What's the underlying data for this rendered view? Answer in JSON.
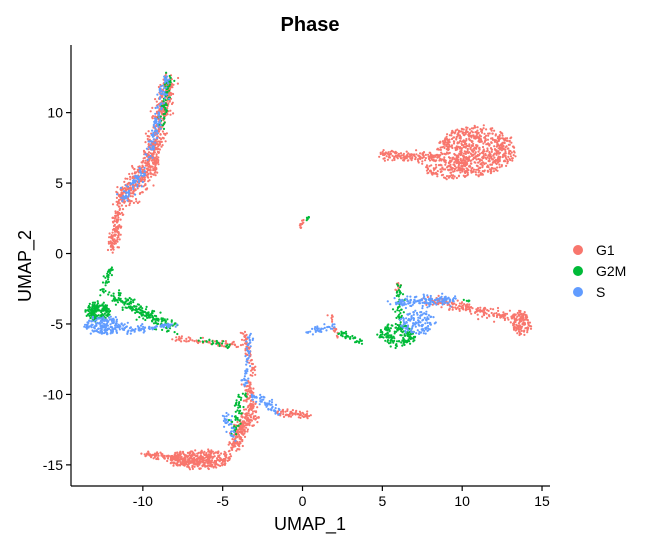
{
  "chart_data": {
    "type": "scatter",
    "title": "Phase",
    "xlabel": "UMAP_1",
    "ylabel": "UMAP_2",
    "xlim": [
      -14.5,
      15.5
    ],
    "ylim": [
      -16.5,
      14.8
    ],
    "xticks": [
      -10,
      -5,
      0,
      5,
      10,
      15
    ],
    "yticks": [
      -15,
      -10,
      -5,
      0,
      5,
      10
    ],
    "xtick_labels": [
      "-10",
      "-5",
      "0",
      "5",
      "10",
      "15"
    ],
    "ytick_labels": [
      "-15",
      "-10",
      "-5",
      "0",
      "5",
      "10"
    ],
    "grid": false,
    "legend_position": "right",
    "series": [
      {
        "name": "G1",
        "color": "#F8766D",
        "clusters": [
          {
            "shape": "ellipse",
            "cx": 10.9,
            "cy": 7.3,
            "rx": 2.4,
            "ry": 1.7,
            "n": 700
          },
          {
            "shape": "segment",
            "from": [
              5.0,
              7.0
            ],
            "to": [
              8.5,
              6.8
            ],
            "width": 0.35,
            "n": 160
          },
          {
            "shape": "ellipse",
            "cx": 9.2,
            "cy": 6.0,
            "rx": 1.5,
            "ry": 0.7,
            "n": 120
          },
          {
            "shape": "segment",
            "from": [
              -8.4,
              12.3
            ],
            "to": [
              -9.5,
              6.3
            ],
            "width": 0.55,
            "n": 420
          },
          {
            "shape": "segment",
            "from": [
              -9.5,
              6.3
            ],
            "to": [
              -11.2,
              4.0
            ],
            "width": 0.75,
            "n": 230
          },
          {
            "shape": "segment",
            "from": [
              -11.3,
              4.5
            ],
            "to": [
              -11.9,
              0.3
            ],
            "width": 0.35,
            "n": 160
          },
          {
            "shape": "segment",
            "from": [
              -0.2,
              1.8
            ],
            "to": [
              0.1,
              2.4
            ],
            "width": 0.1,
            "n": 12
          },
          {
            "shape": "segment",
            "from": [
              7.8,
              -3.3
            ],
            "to": [
              13.0,
              -4.5
            ],
            "width": 0.35,
            "n": 170
          },
          {
            "shape": "ellipse",
            "cx": 13.7,
            "cy": -4.9,
            "rx": 0.6,
            "ry": 0.8,
            "n": 130
          },
          {
            "shape": "ellipse",
            "cx": -6.4,
            "cy": -14.6,
            "rx": 2.0,
            "ry": 0.65,
            "n": 360
          },
          {
            "shape": "segment",
            "from": [
              -10.0,
              -14.2
            ],
            "to": [
              -6.5,
              -14.7
            ],
            "width": 0.25,
            "n": 120
          },
          {
            "shape": "segment",
            "from": [
              -4.3,
              -13.8
            ],
            "to": [
              -3.4,
              -11.3
            ],
            "width": 0.45,
            "n": 180
          },
          {
            "shape": "segment",
            "from": [
              -3.5,
              -9.2
            ],
            "to": [
              -3.0,
              -11.7
            ],
            "width": 0.35,
            "n": 100
          },
          {
            "shape": "segment",
            "from": [
              -1.5,
              -11.3
            ],
            "to": [
              0.5,
              -11.5
            ],
            "width": 0.25,
            "n": 60
          },
          {
            "shape": "segment",
            "from": [
              -8.0,
              -6.0
            ],
            "to": [
              -4.0,
              -6.5
            ],
            "width": 0.25,
            "n": 70
          },
          {
            "shape": "segment",
            "from": [
              -3.7,
              -5.5
            ],
            "to": [
              -3.1,
              -8.6
            ],
            "width": 0.2,
            "n": 60
          },
          {
            "shape": "segment",
            "from": [
              1.8,
              -4.3
            ],
            "to": [
              2.2,
              -6.0
            ],
            "width": 0.15,
            "n": 18
          },
          {
            "shape": "ellipse",
            "cx": 5.9,
            "cy": -2.3,
            "rx": 0.1,
            "ry": 0.3,
            "n": 8
          }
        ]
      },
      {
        "name": "G2M",
        "color": "#00BA38",
        "clusters": [
          {
            "shape": "ellipse",
            "cx": -12.8,
            "cy": -4.1,
            "rx": 0.7,
            "ry": 0.6,
            "n": 160
          },
          {
            "shape": "segment",
            "from": [
              -12.5,
              -2.8
            ],
            "to": [
              -12.0,
              -1.0
            ],
            "width": 0.2,
            "n": 35
          },
          {
            "shape": "segment",
            "from": [
              -11.8,
              -3.0
            ],
            "to": [
              -8.2,
              -5.3
            ],
            "width": 0.5,
            "n": 200
          },
          {
            "shape": "segment",
            "from": [
              -8.3,
              12.8
            ],
            "to": [
              -8.8,
              9.0
            ],
            "width": 0.25,
            "n": 70
          },
          {
            "shape": "segment",
            "from": [
              0.15,
              2.2
            ],
            "to": [
              0.4,
              2.6
            ],
            "width": 0.08,
            "n": 8
          },
          {
            "shape": "ellipse",
            "cx": 5.9,
            "cy": -5.8,
            "rx": 1.1,
            "ry": 0.8,
            "n": 160
          },
          {
            "shape": "segment",
            "from": [
              6.1,
              -2.2
            ],
            "to": [
              6.1,
              -5.0
            ],
            "width": 0.25,
            "n": 45
          },
          {
            "shape": "segment",
            "from": [
              2.2,
              -5.6
            ],
            "to": [
              3.7,
              -6.3
            ],
            "width": 0.2,
            "n": 40
          },
          {
            "shape": "segment",
            "from": [
              -3.8,
              -10.0
            ],
            "to": [
              -4.3,
              -12.8
            ],
            "width": 0.3,
            "n": 55
          },
          {
            "shape": "segment",
            "from": [
              -6.5,
              -6.1
            ],
            "to": [
              -4.5,
              -6.6
            ],
            "width": 0.2,
            "n": 25
          },
          {
            "shape": "segment",
            "from": [
              9.8,
              -3.3
            ],
            "to": [
              10.5,
              -3.4
            ],
            "width": 0.08,
            "n": 6
          }
        ]
      },
      {
        "name": "S",
        "color": "#619CFF",
        "clusters": [
          {
            "shape": "ellipse",
            "cx": -12.3,
            "cy": -5.1,
            "rx": 1.3,
            "ry": 0.6,
            "n": 180
          },
          {
            "shape": "segment",
            "from": [
              -11.0,
              -5.5
            ],
            "to": [
              -8.0,
              -5.1
            ],
            "width": 0.25,
            "n": 70
          },
          {
            "shape": "segment",
            "from": [
              -8.5,
              12.5
            ],
            "to": [
              -9.6,
              6.8
            ],
            "width": 0.3,
            "n": 110
          },
          {
            "shape": "segment",
            "from": [
              -9.9,
              6.0
            ],
            "to": [
              -11.3,
              3.8
            ],
            "width": 0.4,
            "n": 70
          },
          {
            "shape": "segment",
            "from": [
              5.6,
              -3.5
            ],
            "to": [
              9.3,
              -3.3
            ],
            "width": 0.35,
            "n": 150
          },
          {
            "shape": "ellipse",
            "cx": 7.2,
            "cy": -4.9,
            "rx": 1.1,
            "ry": 0.8,
            "n": 130
          },
          {
            "shape": "segment",
            "from": [
              0.3,
              -5.5
            ],
            "to": [
              2.0,
              -5.2
            ],
            "width": 0.25,
            "n": 35
          },
          {
            "shape": "segment",
            "from": [
              -3.3,
              -5.8
            ],
            "to": [
              -3.6,
              -9.5
            ],
            "width": 0.2,
            "n": 55
          },
          {
            "shape": "segment",
            "from": [
              -3.2,
              -10.0
            ],
            "to": [
              -1.6,
              -11.2
            ],
            "width": 0.3,
            "n": 60
          },
          {
            "shape": "segment",
            "from": [
              -4.8,
              -11.5
            ],
            "to": [
              -4.3,
              -13.0
            ],
            "width": 0.25,
            "n": 35
          }
        ]
      }
    ]
  }
}
